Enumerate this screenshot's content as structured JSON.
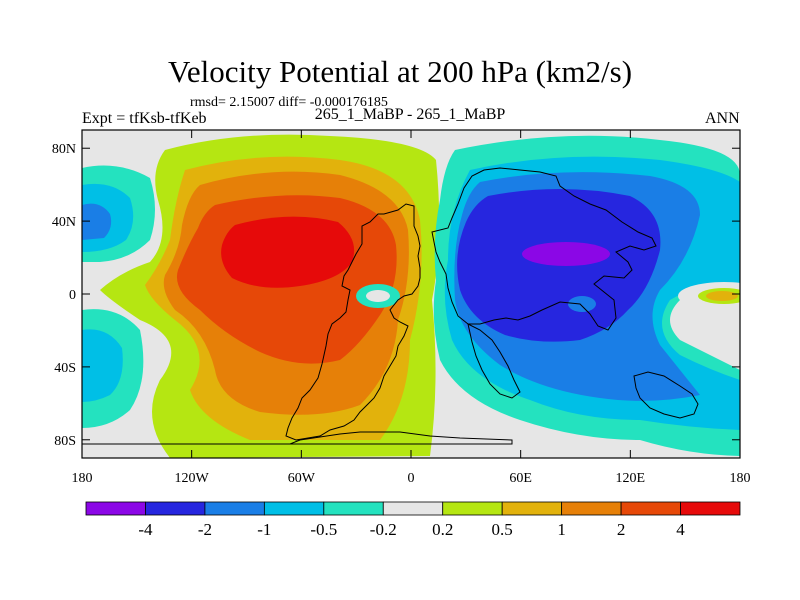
{
  "chart_data": {
    "type": "heatmap",
    "title": "Velocity Potential at 200 hPa (km2/s)",
    "stats": "rmsd= 2.15007 diff= -0.000176185",
    "experiment": "Expt = tfKsb-tfKeb",
    "subtitle": "265_1_MaBP - 265_1_MaBP",
    "season": "ANN",
    "x_ticks": [
      "180",
      "120W",
      "60W",
      "0",
      "60E",
      "120E",
      "180"
    ],
    "y_ticks": [
      "80N",
      "40N",
      "0",
      "40S",
      "80S"
    ],
    "xlim": [
      -180,
      180
    ],
    "ylim": [
      -90,
      90
    ],
    "colorbar": {
      "levels": [
        "-4",
        "-2",
        "-1",
        "-0.5",
        "-0.2",
        "0.2",
        "0.5",
        "1",
        "2",
        "4"
      ],
      "colors": [
        "#8b07e6",
        "#2626df",
        "#1a7ee6",
        "#00bfe6",
        "#24e2bf",
        "#e6e6e6",
        "#b5e612",
        "#e2b20c",
        "#e68008",
        "#e64808",
        "#e60a0a"
      ]
    }
  }
}
